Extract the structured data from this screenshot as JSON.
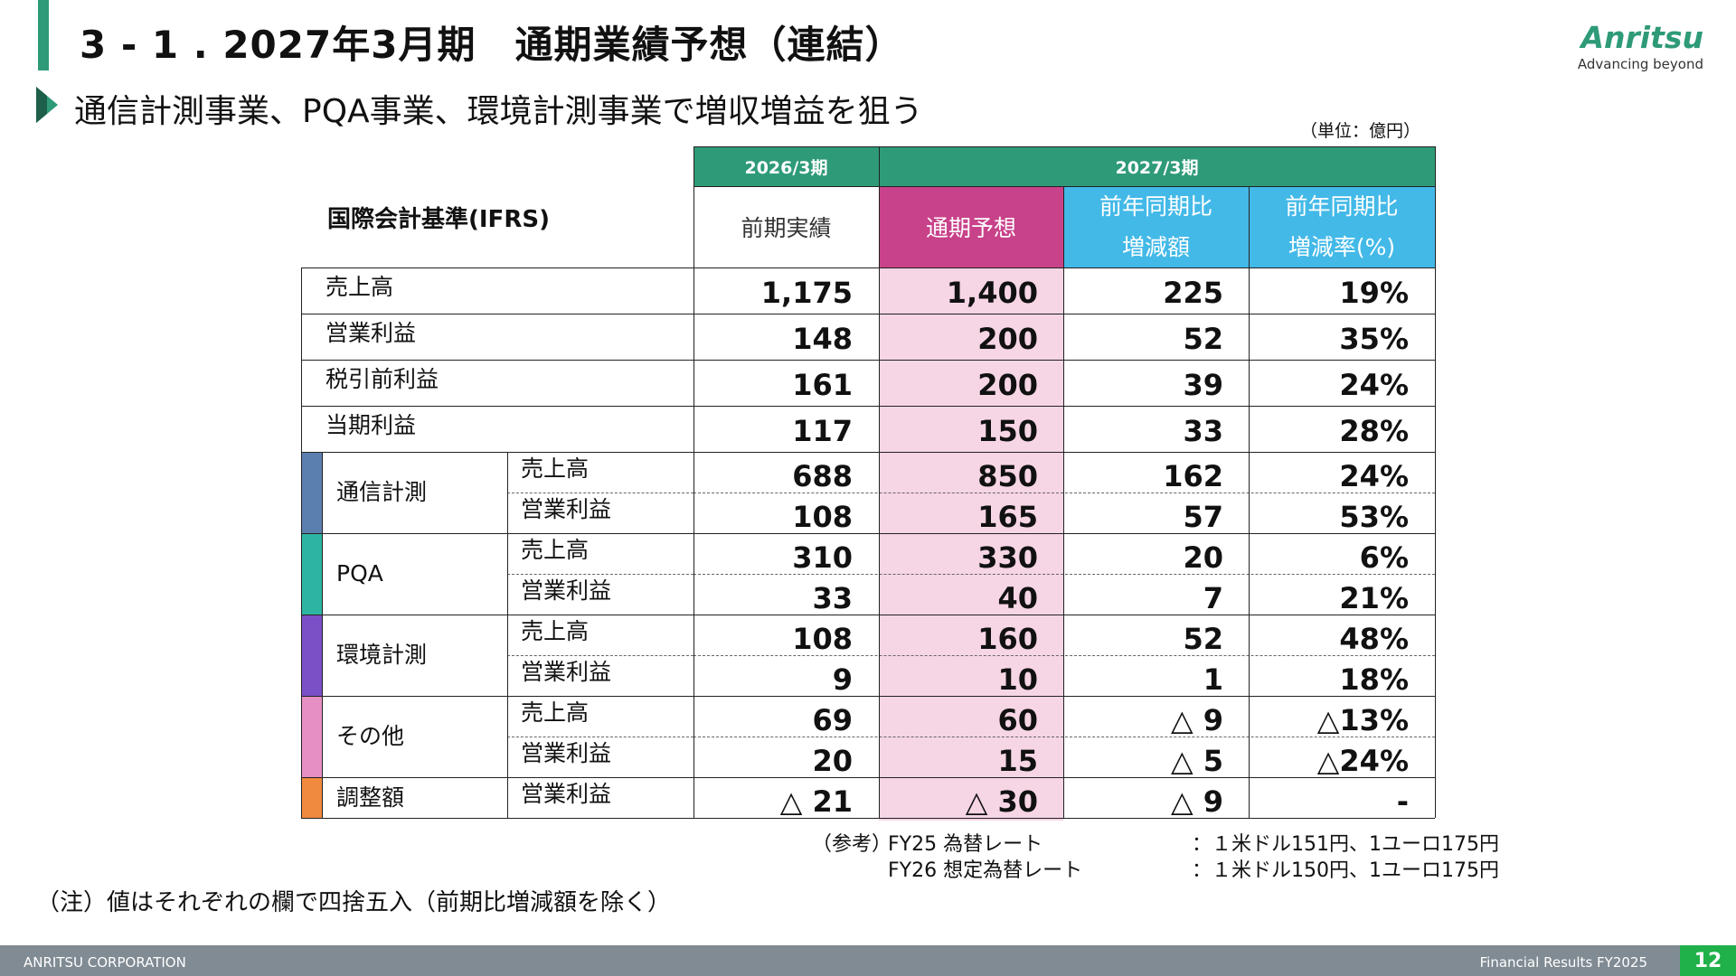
{
  "header": {
    "title": "3 - 1 . 2027年3月期　通期業績予想（連結）",
    "subtitle": "通信計測事業、PQA事業、環境計測事業で増収増益を狙う",
    "logo_word": "Anritsu",
    "logo_tagline": "Advancing beyond",
    "unit": "（単位：億円）"
  },
  "table": {
    "standard_label": "国際会計基準(IFRS)",
    "period_headers": [
      "2026/3期",
      "2027/3期"
    ],
    "column_headers": {
      "actual": "前期実績",
      "forecast": "通期予想",
      "yoy_amount_1": "前年同期比",
      "yoy_amount_2": "増減額",
      "yoy_rate_1": "前年同期比",
      "yoy_rate_2": "増減率(%)"
    },
    "summary_rows": [
      {
        "label": "売上高",
        "actual": "1,175",
        "forecast": "1,400",
        "diff": "225",
        "rate": "19%"
      },
      {
        "label": "営業利益",
        "actual": "148",
        "forecast": "200",
        "diff": "52",
        "rate": "35%"
      },
      {
        "label": "税引前利益",
        "actual": "161",
        "forecast": "200",
        "diff": "39",
        "rate": "24%"
      },
      {
        "label": "当期利益",
        "actual": "117",
        "forecast": "150",
        "diff": "33",
        "rate": "28%"
      }
    ],
    "segments": [
      {
        "name": "通信計測",
        "color": "#5b7fae",
        "rows": [
          {
            "label": "売上高",
            "actual": "688",
            "forecast": "850",
            "diff": "162",
            "rate": "24%"
          },
          {
            "label": "営業利益",
            "actual": "108",
            "forecast": "165",
            "diff": "57",
            "rate": "53%"
          }
        ]
      },
      {
        "name": "PQA",
        "color": "#2db5a2",
        "rows": [
          {
            "label": "売上高",
            "actual": "310",
            "forecast": "330",
            "diff": "20",
            "rate": "6%"
          },
          {
            "label": "営業利益",
            "actual": "33",
            "forecast": "40",
            "diff": "7",
            "rate": "21%"
          }
        ]
      },
      {
        "name": "環境計測",
        "color": "#7b4fc6",
        "rows": [
          {
            "label": "売上高",
            "actual": "108",
            "forecast": "160",
            "diff": "52",
            "rate": "48%"
          },
          {
            "label": "営業利益",
            "actual": "9",
            "forecast": "10",
            "diff": "1",
            "rate": "18%"
          }
        ]
      },
      {
        "name": "その他",
        "color": "#e68fc4",
        "rows": [
          {
            "label": "売上高",
            "actual": "69",
            "forecast": "60",
            "diff": "△ 9",
            "rate": "△13%"
          },
          {
            "label": "営業利益",
            "actual": "20",
            "forecast": "15",
            "diff": "△ 5",
            "rate": "△24%"
          }
        ]
      },
      {
        "name": "調整額",
        "color": "#f08a3e",
        "rows": [
          {
            "label": "営業利益",
            "actual": "△ 21",
            "forecast": "△ 30",
            "diff": "△ 9",
            "rate": "-"
          }
        ]
      }
    ]
  },
  "notes": {
    "ref_label": "（参考）",
    "fx": [
      {
        "label": "FY25 為替レート",
        "value": "：１米ドル151円、1ユーロ175円"
      },
      {
        "label": "FY26 想定為替レート",
        "value": "：１米ドル150円、1ユーロ175円"
      }
    ],
    "footnote": "（注）値はそれぞれの欄で四捨五入（前期比増減額を除く）"
  },
  "footer": {
    "company": "ANRITSU CORPORATION",
    "doc_title": "Financial Results FY2025",
    "page_number": "12"
  }
}
